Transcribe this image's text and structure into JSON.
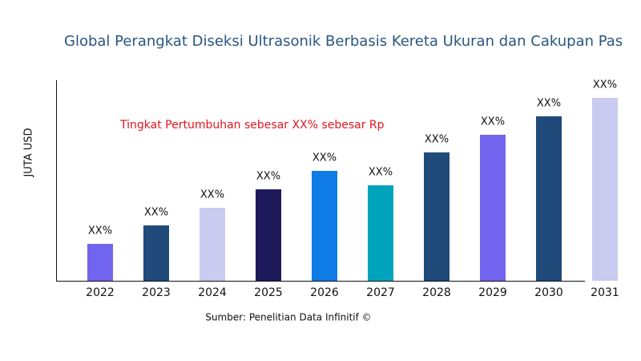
{
  "chart_data": {
    "type": "bar",
    "title": "Global Perangkat Diseksi Ultrasonik Berbasis Kereta Ukuran dan Cakupan Pas",
    "annotation": "Tingkat Pertumbuhan sebesar XX% sebesar Rp",
    "y_label": "JUTA USD",
    "source": "Sumber: Penelitian Data Infinitif ©",
    "categories": [
      "2022",
      "2023",
      "2024",
      "2025",
      "2026",
      "2027",
      "2028",
      "2029",
      "2030",
      "2031"
    ],
    "values": [
      46,
      69,
      91,
      114,
      137,
      119,
      160,
      182,
      205,
      228
    ],
    "value_labels": [
      "XX%",
      "XX%",
      "XX%",
      "XX%",
      "XX%",
      "XX%",
      "XX%",
      "XX%",
      "XX%",
      "XX%"
    ],
    "colors": [
      "#7165f0",
      "#1f4a7a",
      "#c9cbf0",
      "#1e1a5a",
      "#0f7be6",
      "#00a3bc",
      "#1f4a7a",
      "#7165f0",
      "#1f4a7a",
      "#c9cbf0"
    ],
    "ylim": [
      0,
      250
    ]
  }
}
